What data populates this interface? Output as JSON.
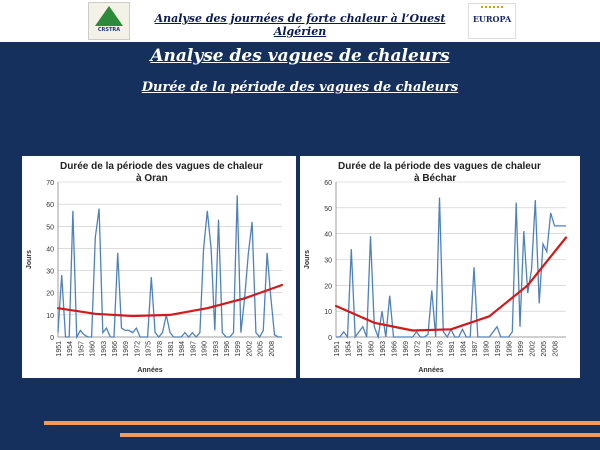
{
  "header": {
    "text": "Analyse des journées de forte chaleur à l’Ouest Algérien",
    "logo_left_text": "CRSTRA",
    "logo_right_text": "EUROPA"
  },
  "slide": {
    "title": "Analyse des vagues de chaleurs",
    "subtitle": "Durée de la période des vagues de chaleurs"
  },
  "colors": {
    "background": "#16305e",
    "series": "#4f81bd",
    "trend": "#d11a1a",
    "stripe": "#f29a5c"
  },
  "chart_data": [
    {
      "type": "line",
      "title_line1": "Durée de la période des vagues de chaleur",
      "title_line2": "à Oran",
      "xlabel": "Années",
      "ylabel": "Jours",
      "ylim": [
        0,
        70
      ],
      "yticks": [
        0,
        10,
        20,
        30,
        40,
        50,
        60,
        70
      ],
      "xlim": [
        1951,
        2011
      ],
      "xticks": [
        1951,
        1954,
        1957,
        1960,
        1963,
        1966,
        1969,
        1972,
        1975,
        1978,
        1981,
        1984,
        1987,
        1990,
        1993,
        1996,
        1999,
        2002,
        2005,
        2008
      ],
      "grid": "horizontal",
      "series": [
        {
          "x": [
            1951,
            1952,
            1953,
            1954,
            1955,
            1956,
            1957,
            1958,
            1959,
            1960,
            1961,
            1962,
            1963,
            1964,
            1965,
            1966,
            1967,
            1968,
            1969,
            1970,
            1971,
            1972,
            1973,
            1974,
            1975,
            1976,
            1977,
            1978,
            1979,
            1980,
            1981,
            1982,
            1983,
            1984,
            1985,
            1986,
            1987,
            1988,
            1989,
            1990,
            1991,
            1992,
            1993,
            1994,
            1995,
            1996,
            1997,
            1998,
            1999,
            2000,
            2001,
            2002,
            2003,
            2004,
            2005,
            2006,
            2007,
            2008,
            2009,
            2010,
            2011
          ],
          "y": [
            2,
            28,
            0,
            0,
            57,
            0,
            3,
            1,
            0,
            0,
            45,
            58,
            2,
            4,
            0,
            0,
            38,
            4,
            3,
            3,
            2,
            4,
            0,
            0,
            0,
            27,
            2,
            0,
            2,
            10,
            2,
            0,
            0,
            0,
            2,
            0,
            2,
            0,
            2,
            40,
            57,
            40,
            3,
            53,
            2,
            0,
            0,
            2,
            64,
            2,
            18,
            38,
            52,
            2,
            0,
            3,
            38,
            18,
            1,
            0,
            0
          ]
        }
      ],
      "trend": {
        "x": [
          1951,
          1961,
          1971,
          1981,
          1991,
          2001,
          2011
        ],
        "y": [
          13,
          10.5,
          9.5,
          10,
          13,
          17.5,
          23.5
        ]
      }
    },
    {
      "type": "line",
      "title_line1": "Durée de la période des vagues de chaleur",
      "title_line2": "à Béchar",
      "xlabel": "Années",
      "ylabel": "Jours",
      "ylim": [
        0,
        60
      ],
      "yticks": [
        0,
        10,
        20,
        30,
        40,
        50,
        60
      ],
      "xlim": [
        1951,
        2011
      ],
      "xticks": [
        1951,
        1954,
        1957,
        1960,
        1963,
        1966,
        1969,
        1972,
        1975,
        1978,
        1981,
        1984,
        1987,
        1990,
        1993,
        1996,
        1999,
        2002,
        2005,
        2008
      ],
      "grid": "horizontal",
      "series": [
        {
          "x": [
            1951,
            1952,
            1953,
            1954,
            1955,
            1956,
            1957,
            1958,
            1959,
            1960,
            1961,
            1962,
            1963,
            1964,
            1965,
            1966,
            1967,
            1968,
            1969,
            1970,
            1971,
            1972,
            1973,
            1974,
            1975,
            1976,
            1977,
            1978,
            1979,
            1980,
            1981,
            1982,
            1983,
            1984,
            1985,
            1986,
            1987,
            1988,
            1989,
            1990,
            1991,
            1992,
            1993,
            1994,
            1995,
            1996,
            1997,
            1998,
            1999,
            2000,
            2001,
            2002,
            2003,
            2004,
            2005,
            2006,
            2007,
            2008,
            2009,
            2010,
            2011
          ],
          "y": [
            0,
            0,
            2,
            0,
            34,
            0,
            2,
            4,
            0,
            39,
            4,
            0,
            10,
            0,
            16,
            0,
            0,
            0,
            0,
            0,
            0,
            2,
            0,
            0,
            1,
            18,
            0,
            54,
            2,
            0,
            3,
            0,
            0,
            3,
            0,
            0,
            27,
            0,
            0,
            0,
            0,
            2,
            4,
            0,
            0,
            0,
            2,
            52,
            4,
            41,
            17,
            26,
            53,
            13,
            36,
            33,
            48,
            43,
            43,
            43,
            43
          ]
        }
      ],
      "trend": {
        "x": [
          1951,
          1961,
          1971,
          1981,
          1991,
          2001,
          2011
        ],
        "y": [
          12,
          5.5,
          2.5,
          3,
          8,
          20,
          38.5
        ]
      }
    }
  ]
}
